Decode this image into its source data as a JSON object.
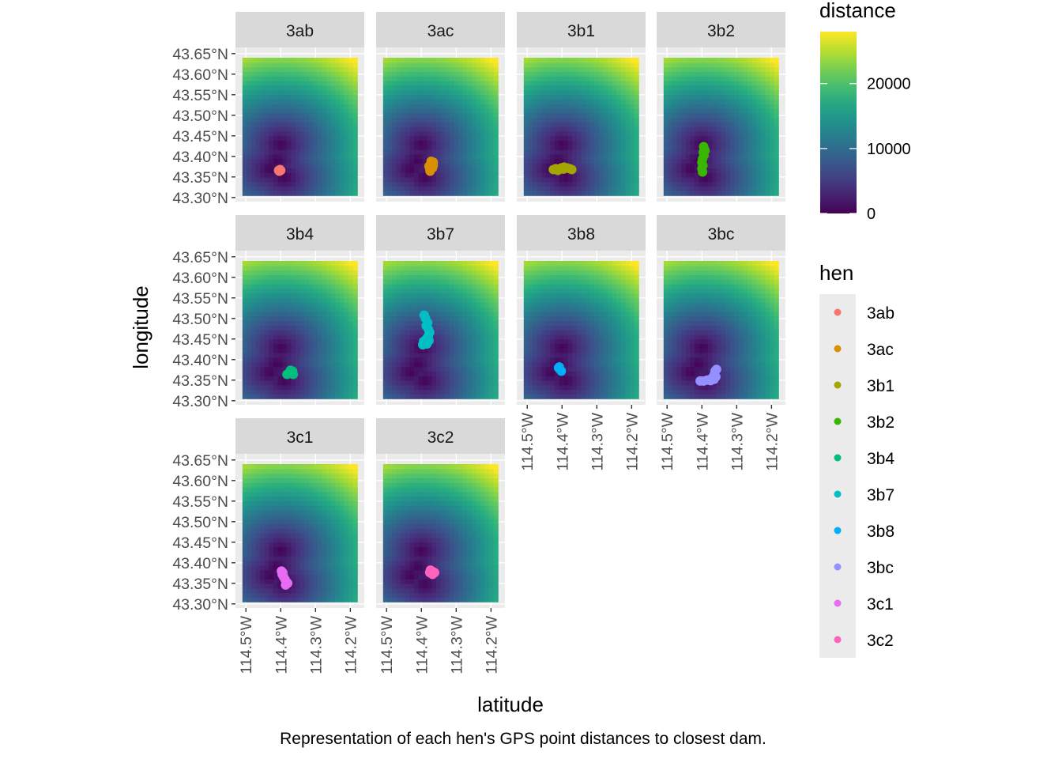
{
  "chart_data": {
    "type": "scatter",
    "subtype": "faceted heatmap with point overlay",
    "xlabel": "latitude",
    "ylabel": "longitude",
    "caption": "Representation of each hen's GPS point distances to closest dam.",
    "x_ticks": [
      "114.5°W",
      "114.4°W",
      "114.3°W",
      "114.2°W"
    ],
    "x_tick_values": [
      -114.5,
      -114.4,
      -114.3,
      -114.2
    ],
    "y_ticks": [
      "43.30°N",
      "43.35°N",
      "43.40°N",
      "43.45°N",
      "43.50°N",
      "43.55°N",
      "43.60°N",
      "43.65°N"
    ],
    "y_tick_values": [
      43.3,
      43.35,
      43.4,
      43.45,
      43.5,
      43.55,
      43.6,
      43.65
    ],
    "xlim": [
      -114.53,
      -114.16
    ],
    "ylim": [
      43.29,
      43.665
    ],
    "raster_extent": {
      "x": [
        -114.51,
        -114.18
      ],
      "y": [
        43.305,
        43.64
      ]
    },
    "fill_scale": {
      "title": "distance",
      "palette": "viridis",
      "range": [
        0,
        28000
      ],
      "breaks": [
        0,
        10000,
        20000
      ],
      "break_labels": [
        "0",
        "10000",
        "20000"
      ],
      "dam_points": [
        {
          "x": -114.4,
          "y": 43.43
        },
        {
          "x": -114.41,
          "y": 43.39
        },
        {
          "x": -114.39,
          "y": 43.35
        },
        {
          "x": -114.43,
          "y": 43.37
        }
      ]
    },
    "legend": {
      "title": "hen",
      "position": "right",
      "entries": [
        {
          "label": "3ab",
          "color": "#F8766D"
        },
        {
          "label": "3ac",
          "color": "#D89000"
        },
        {
          "label": "3b1",
          "color": "#A3A500"
        },
        {
          "label": "3b2",
          "color": "#39B600"
        },
        {
          "label": "3b4",
          "color": "#00BF7D"
        },
        {
          "label": "3b7",
          "color": "#00BFC4"
        },
        {
          "label": "3b8",
          "color": "#00B0F6"
        },
        {
          "label": "3bc",
          "color": "#9590FF"
        },
        {
          "label": "3c1",
          "color": "#E76BF3"
        },
        {
          "label": "3c2",
          "color": "#FF62BC"
        }
      ]
    },
    "facets": [
      {
        "label": "3ab",
        "color": "#F8766D",
        "points": [
          {
            "x": -114.406,
            "y": 43.366
          },
          {
            "x": -114.402,
            "y": 43.368
          },
          {
            "x": -114.404,
            "y": 43.364
          },
          {
            "x": -114.4,
            "y": 43.366
          }
        ]
      },
      {
        "label": "3ac",
        "color": "#D89000",
        "points": [
          {
            "x": -114.375,
            "y": 43.364
          },
          {
            "x": -114.376,
            "y": 43.37
          },
          {
            "x": -114.378,
            "y": 43.376
          },
          {
            "x": -114.374,
            "y": 43.38
          },
          {
            "x": -114.37,
            "y": 43.384
          },
          {
            "x": -114.372,
            "y": 43.388
          },
          {
            "x": -114.366,
            "y": 43.386
          },
          {
            "x": -114.366,
            "y": 43.378
          },
          {
            "x": -114.368,
            "y": 43.372
          }
        ]
      },
      {
        "label": "3b1",
        "color": "#A3A500",
        "points": [
          {
            "x": -114.425,
            "y": 43.368
          },
          {
            "x": -114.418,
            "y": 43.37
          },
          {
            "x": -114.41,
            "y": 43.368
          },
          {
            "x": -114.402,
            "y": 43.372
          },
          {
            "x": -114.394,
            "y": 43.374
          },
          {
            "x": -114.386,
            "y": 43.372
          },
          {
            "x": -114.378,
            "y": 43.37
          },
          {
            "x": -114.372,
            "y": 43.368
          },
          {
            "x": -114.412,
            "y": 43.366
          },
          {
            "x": -114.396,
            "y": 43.369
          }
        ]
      },
      {
        "label": "3b2",
        "color": "#39B600",
        "points": [
          {
            "x": -114.398,
            "y": 43.362
          },
          {
            "x": -114.4,
            "y": 43.37
          },
          {
            "x": -114.397,
            "y": 43.378
          },
          {
            "x": -114.4,
            "y": 43.386
          },
          {
            "x": -114.398,
            "y": 43.394
          },
          {
            "x": -114.394,
            "y": 43.402
          },
          {
            "x": -114.396,
            "y": 43.41
          },
          {
            "x": -114.393,
            "y": 43.418
          },
          {
            "x": -114.395,
            "y": 43.424
          },
          {
            "x": -114.391,
            "y": 43.414
          }
        ]
      },
      {
        "label": "3b4",
        "color": "#00BF7D",
        "points": [
          {
            "x": -114.382,
            "y": 43.364
          },
          {
            "x": -114.376,
            "y": 43.368
          },
          {
            "x": -114.37,
            "y": 43.366
          },
          {
            "x": -114.366,
            "y": 43.372
          },
          {
            "x": -114.372,
            "y": 43.374
          },
          {
            "x": -114.364,
            "y": 43.364
          }
        ]
      },
      {
        "label": "3b7",
        "color": "#00BFC4",
        "points": [
          {
            "x": -114.396,
            "y": 43.436
          },
          {
            "x": -114.39,
            "y": 43.442
          },
          {
            "x": -114.384,
            "y": 43.438
          },
          {
            "x": -114.386,
            "y": 43.45
          },
          {
            "x": -114.38,
            "y": 43.458
          },
          {
            "x": -114.376,
            "y": 43.466
          },
          {
            "x": -114.38,
            "y": 43.474
          },
          {
            "x": -114.386,
            "y": 43.482
          },
          {
            "x": -114.382,
            "y": 43.49
          },
          {
            "x": -114.388,
            "y": 43.5
          },
          {
            "x": -114.392,
            "y": 43.508
          },
          {
            "x": -114.394,
            "y": 43.444
          },
          {
            "x": -114.378,
            "y": 43.446
          }
        ]
      },
      {
        "label": "3b8",
        "color": "#00B0F6",
        "points": [
          {
            "x": -114.41,
            "y": 43.38
          },
          {
            "x": -114.406,
            "y": 43.376
          },
          {
            "x": -114.402,
            "y": 43.372
          },
          {
            "x": -114.408,
            "y": 43.382
          }
        ]
      },
      {
        "label": "3bc",
        "color": "#9590FF",
        "points": [
          {
            "x": -114.405,
            "y": 43.348
          },
          {
            "x": -114.395,
            "y": 43.348
          },
          {
            "x": -114.385,
            "y": 43.35
          },
          {
            "x": -114.375,
            "y": 43.349
          },
          {
            "x": -114.365,
            "y": 43.352
          },
          {
            "x": -114.36,
            "y": 43.358
          },
          {
            "x": -114.364,
            "y": 43.365
          },
          {
            "x": -114.362,
            "y": 43.372
          },
          {
            "x": -114.358,
            "y": 43.376
          },
          {
            "x": -114.37,
            "y": 43.356
          }
        ]
      },
      {
        "label": "3c1",
        "color": "#E76BF3",
        "points": [
          {
            "x": -114.398,
            "y": 43.38
          },
          {
            "x": -114.396,
            "y": 43.372
          },
          {
            "x": -114.392,
            "y": 43.366
          },
          {
            "x": -114.388,
            "y": 43.36
          },
          {
            "x": -114.384,
            "y": 43.354
          },
          {
            "x": -114.386,
            "y": 43.346
          },
          {
            "x": -114.394,
            "y": 43.376
          },
          {
            "x": -114.38,
            "y": 43.35
          }
        ]
      },
      {
        "label": "3c2",
        "color": "#FF62BC",
        "points": [
          {
            "x": -114.376,
            "y": 43.376
          },
          {
            "x": -114.37,
            "y": 43.38
          },
          {
            "x": -114.366,
            "y": 43.378
          },
          {
            "x": -114.368,
            "y": 43.372
          },
          {
            "x": -114.374,
            "y": 43.382
          },
          {
            "x": -114.362,
            "y": 43.376
          }
        ]
      }
    ]
  }
}
